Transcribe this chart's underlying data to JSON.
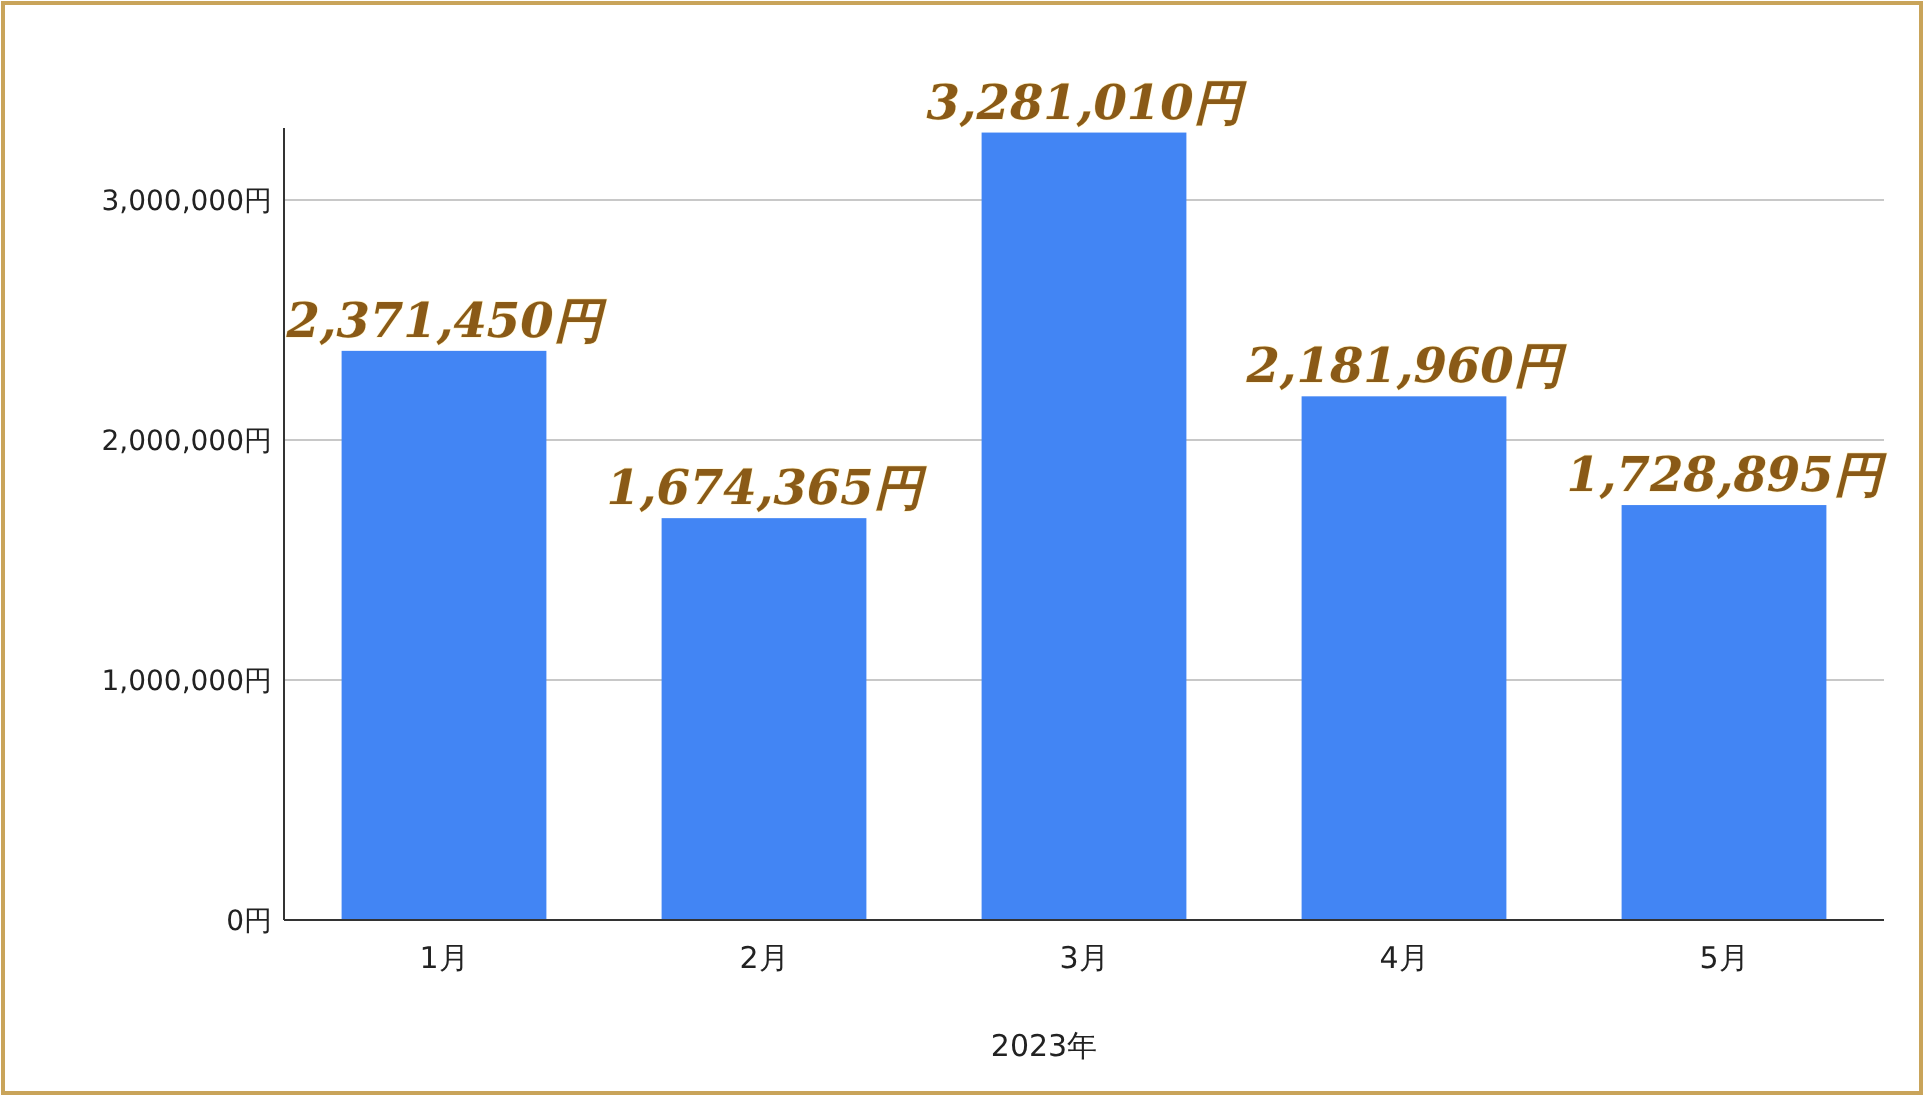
{
  "chart_data": {
    "type": "bar",
    "xlabel": "2023年",
    "categories": [
      "1月",
      "2月",
      "3月",
      "4月",
      "5月"
    ],
    "values": [
      2371450,
      1674365,
      3281010,
      2181960,
      1728895
    ],
    "value_labels": [
      "2,371,450円",
      "1,674,365円",
      "3,281,010円",
      "2,181,960円",
      "1,728,895円"
    ],
    "color": "#4285f4",
    "ylim": [
      0,
      3300000
    ],
    "yticks": [
      {
        "value": 0,
        "label": "0円"
      },
      {
        "value": 1000000,
        "label": "1,000,000円"
      },
      {
        "value": 2000000,
        "label": "2,000,000円"
      },
      {
        "value": 3000000,
        "label": "3,000,000円"
      }
    ],
    "grid": "y"
  }
}
